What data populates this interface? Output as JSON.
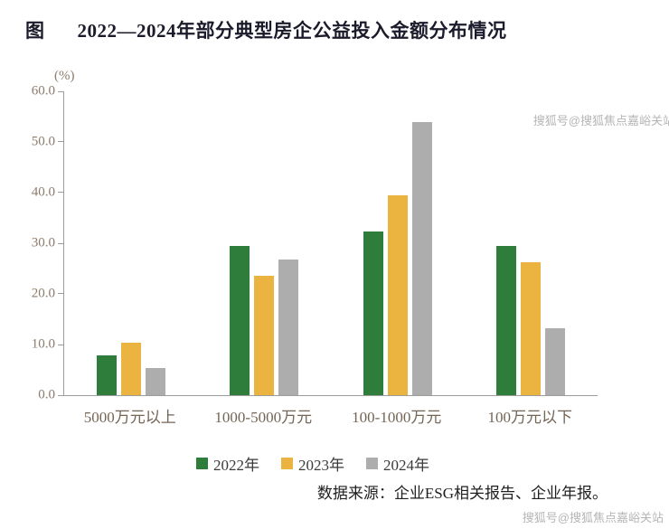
{
  "title": {
    "prefix": "图",
    "text": "2022—2024年部分典型房企公益投入金额分布情况"
  },
  "chart_data": {
    "type": "bar",
    "categories": [
      "5000万元以上",
      "1000-5000万元",
      "100-1000万元",
      "100万元以下"
    ],
    "series": [
      {
        "name": "2022年",
        "color": "#2E7D3A",
        "values": [
          7.9,
          29.5,
          32.3,
          29.5
        ]
      },
      {
        "name": "2023年",
        "color": "#EBB440",
        "values": [
          10.3,
          23.5,
          39.4,
          26.2
        ]
      },
      {
        "name": "2024年",
        "color": "#ADADAD",
        "values": [
          5.4,
          26.8,
          53.9,
          13.3
        ]
      }
    ],
    "ylabel": "(%)",
    "xlabel": "",
    "ylim": [
      0,
      60
    ],
    "yticks": [
      "60.0",
      "50.0",
      "40.0",
      "30.0",
      "20.0",
      "10.0",
      "0.0"
    ],
    "grid": false,
    "legend_position": "bottom"
  },
  "source": "数据来源：企业ESG相关报告、企业年报。",
  "watermark": "搜狐号@搜狐焦点嘉峪关站"
}
